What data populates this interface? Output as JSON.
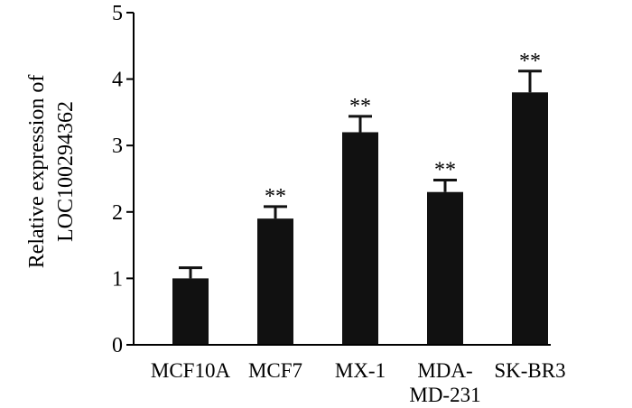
{
  "chart_data": {
    "type": "bar",
    "title": "",
    "xlabel": "",
    "ylabel": [
      "Relative expression of",
      "LOC100294362"
    ],
    "categories": [
      [
        "MCF10A"
      ],
      [
        "MCF7"
      ],
      [
        "MX-1"
      ],
      [
        "MDA-",
        "MD-231"
      ],
      [
        "SK-BR3"
      ]
    ],
    "values": [
      1.0,
      1.9,
      3.2,
      2.3,
      3.8
    ],
    "errors": [
      0.16,
      0.18,
      0.24,
      0.18,
      0.32
    ],
    "significance": [
      "",
      "**",
      "**",
      "**",
      "**"
    ],
    "ylim": [
      0,
      5
    ],
    "yticks": [
      0,
      1,
      2,
      3,
      4,
      5
    ],
    "grid": false,
    "bar_color": "#111111",
    "axis_color": "#000000"
  }
}
